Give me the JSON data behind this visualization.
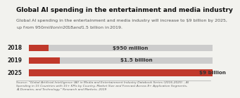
{
  "title": "Global AI spending in the entertainment and media industry",
  "subtitle": "Global AI spending in the entertainment and media industry will increase to $9 billion by 2025,\nup from $950 million in 2018 and $1.5 billion in 2019.",
  "source": "Source: \"Global Artificial Intelligence (AI) in Media and Entertainment Industry Databook Series (2016-2025) - AI\nSpending in 15 Countries with 15+ KPIs by Country, Market Size and Forecast Across 8+ Application Segments,\nAI Domains, and Technology,\" Research and Markets, 2019",
  "years": [
    "2018",
    "2019",
    "2025"
  ],
  "values": [
    0.95,
    1.5,
    9.0
  ],
  "max_value": 9.0,
  "bar_color": "#c0392b",
  "bg_bar_color": "#cccccc",
  "labels": [
    "$950 million",
    "$1.5 billion",
    "$9 billion"
  ],
  "background_color": "#f2f2ee",
  "title_fontsize": 6.5,
  "subtitle_fontsize": 4.5,
  "label_fontsize": 5.2,
  "year_fontsize": 5.5,
  "source_fontsize": 3.2,
  "bar_height": 0.52
}
